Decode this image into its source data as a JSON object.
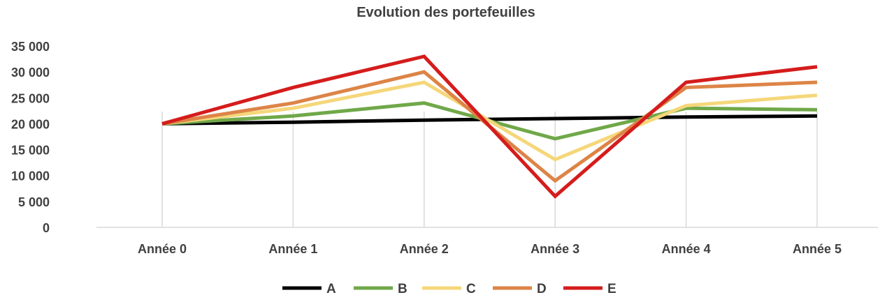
{
  "chart_data": {
    "type": "line",
    "title": "Evolution des portefeuilles",
    "xlabel": "",
    "ylabel": "",
    "categories": [
      "Année 0",
      "Année 1",
      "Année 2",
      "Année 3",
      "Année 4",
      "Année 5"
    ],
    "ylim": [
      0,
      35000
    ],
    "yticks": [
      0,
      5000,
      10000,
      15000,
      20000,
      25000,
      30000,
      35000
    ],
    "ytick_labels": [
      "0",
      "5 000",
      "10 000",
      "15 000",
      "20 000",
      "25 000",
      "30 000",
      "35 000"
    ],
    "grid": "vertical",
    "legend_position": "bottom",
    "series": [
      {
        "name": "A",
        "color": "#000000",
        "values": [
          20000,
          20300,
          20700,
          21000,
          21300,
          21500
        ]
      },
      {
        "name": "B",
        "color": "#70a849",
        "values": [
          20000,
          21500,
          24000,
          17100,
          23000,
          22700
        ]
      },
      {
        "name": "C",
        "color": "#f5d77a",
        "values": [
          20000,
          23000,
          28000,
          13100,
          23500,
          25500
        ]
      },
      {
        "name": "D",
        "color": "#dd8447",
        "values": [
          20000,
          24000,
          30000,
          9000,
          27000,
          28000
        ]
      },
      {
        "name": "E",
        "color": "#d51c1c",
        "values": [
          20000,
          27000,
          33000,
          6000,
          28000,
          31000
        ]
      }
    ]
  }
}
